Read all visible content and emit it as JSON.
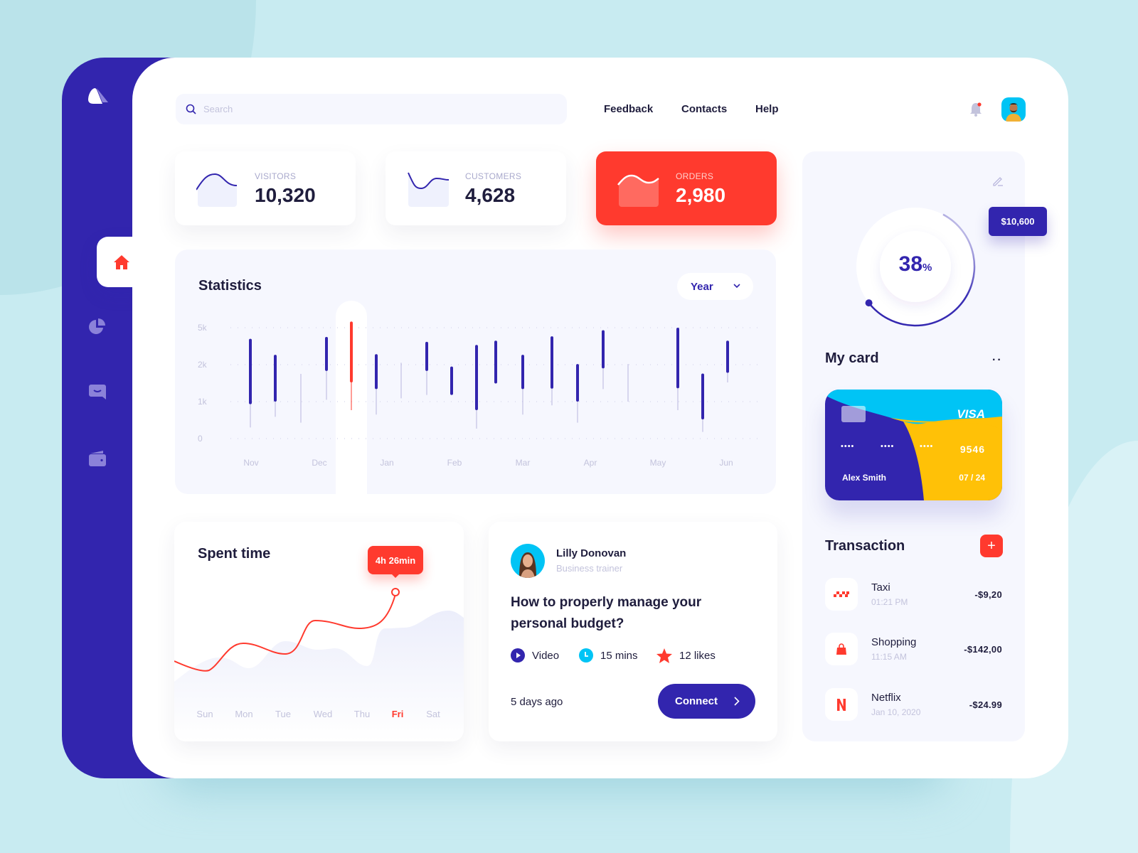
{
  "header": {
    "search_placeholder": "Search",
    "nav": [
      "Feedback",
      "Contacts",
      "Help"
    ],
    "notification_dot": true
  },
  "sidebar": {
    "items": [
      {
        "name": "home",
        "icon": "home-icon",
        "active": true
      },
      {
        "name": "analytics",
        "icon": "pie-chart-icon"
      },
      {
        "name": "messages",
        "icon": "chat-icon"
      },
      {
        "name": "wallet",
        "icon": "wallet-icon"
      }
    ]
  },
  "stats": [
    {
      "label": "VISITORS",
      "value": "10,320"
    },
    {
      "label": "CUSTOMERS",
      "value": "4,628"
    },
    {
      "label": "ORDERS",
      "value": "2,980"
    }
  ],
  "statistics": {
    "title": "Statistics",
    "period": "Year"
  },
  "chart_data": [
    {
      "type": "candlestick",
      "title": "Statistics",
      "y_ticks": [
        "5k",
        "2k",
        "1k",
        "0"
      ],
      "y_tick_values": [
        5000,
        2000,
        1000,
        0
      ],
      "x_ticks": [
        "Nov",
        "Dec",
        "Jan",
        "Feb",
        "Mar",
        "Apr",
        "May",
        "Jun"
      ],
      "grid": true,
      "highlight_index": 4,
      "colors": {
        "default": "#3225ae",
        "highlight": "#ff3a2e",
        "wick": "#b8b6dd"
      },
      "candles": [
        {
          "high": 4100,
          "low": 300,
          "body_high": 4100,
          "body_low": 930
        },
        {
          "high": 2800,
          "low": 590,
          "body_high": 2800,
          "body_low": 1000
        },
        {
          "high": 1750,
          "low": 430
        },
        {
          "high": 4250,
          "low": 1050,
          "body_high": 4250,
          "body_low": 1830
        },
        {
          "high": 5500,
          "low": 770,
          "body_high": 5500,
          "body_low": 1520
        },
        {
          "high": 2850,
          "low": 650,
          "body_high": 2850,
          "body_low": 1340
        },
        {
          "high": 2150,
          "low": 1090
        },
        {
          "high": 3850,
          "low": 1180,
          "body_high": 3850,
          "body_low": 1830
        },
        {
          "high": 1950,
          "low": 1180,
          "body_high": 1950,
          "body_low": 1180
        },
        {
          "high": 3600,
          "low": 270,
          "body_high": 3600,
          "body_low": 770
        },
        {
          "high": 3950,
          "low": 1490,
          "body_high": 3950,
          "body_low": 1490
        },
        {
          "high": 2800,
          "low": 650,
          "body_high": 2800,
          "body_low": 1340
        },
        {
          "high": 4300,
          "low": 900,
          "body_high": 4300,
          "body_low": 1350
        },
        {
          "high": 2050,
          "low": 430,
          "body_high": 2050,
          "body_low": 1000
        },
        {
          "high": 4800,
          "low": 1340,
          "body_high": 4800,
          "body_low": 1900
        },
        {
          "high": 2050,
          "low": 1000
        },
        {
          "high": 5000,
          "low": 770,
          "body_high": 5000,
          "body_low": 1360
        },
        {
          "high": 1760,
          "low": 180,
          "body_high": 1760,
          "body_low": 520
        },
        {
          "high": 3950,
          "low": 1520,
          "body_high": 3950,
          "body_low": 1780
        }
      ]
    },
    {
      "type": "line",
      "title": "Spent time",
      "categories": [
        "Sun",
        "Mon",
        "Tue",
        "Wed",
        "Thu",
        "Fri",
        "Sat"
      ],
      "highlight_category": "Fri",
      "highlight_label": "4h 26min",
      "colors": {
        "line": "#ff3a2e",
        "area": "#eef0fb"
      }
    }
  ],
  "spent_time": {
    "title": "Spent time",
    "tooltip": "4h 26min",
    "days": [
      "Sun",
      "Mon",
      "Tue",
      "Wed",
      "Thu",
      "Fri",
      "Sat"
    ],
    "active_day": 5
  },
  "article": {
    "author": "Lilly Donovan",
    "role": "Business trainer",
    "title_line1": "How to properly manage your",
    "title_line2": "personal budget?",
    "meta": [
      {
        "icon": "play-icon",
        "label": "Video"
      },
      {
        "icon": "clock-icon",
        "label": "15 mins"
      },
      {
        "icon": "star-icon",
        "label": "12 likes"
      }
    ],
    "posted": "5 days ago",
    "button": "Connect"
  },
  "wallet": {
    "percent": "38",
    "percent_sign": "%",
    "progress": 0.38,
    "balance": "$10,600",
    "my_card_title": "My card",
    "card": {
      "brand": "VISA",
      "masked": [
        "••••",
        "••••",
        "••••"
      ],
      "last4": "9546",
      "holder": "Alex Smith",
      "expiry": "07 / 24"
    },
    "transaction_title": "Transaction",
    "transactions": [
      {
        "name": "Taxi",
        "sub": "01:21 PM",
        "amount": "-$9,20",
        "icon": "taxi-icon"
      },
      {
        "name": "Shopping",
        "sub": "11:15 AM",
        "amount": "-$142,00",
        "icon": "shopping-bag-icon"
      },
      {
        "name": "Netflix",
        "sub": "Jan 10, 2020",
        "amount": "-$24.99",
        "icon": "netflix-icon"
      }
    ]
  },
  "colors": {
    "primary": "#3225ae",
    "accent": "#ff3a2e",
    "cyan": "#00c4f5",
    "yellow": "#ffc107",
    "background": "#c8ebf1"
  }
}
